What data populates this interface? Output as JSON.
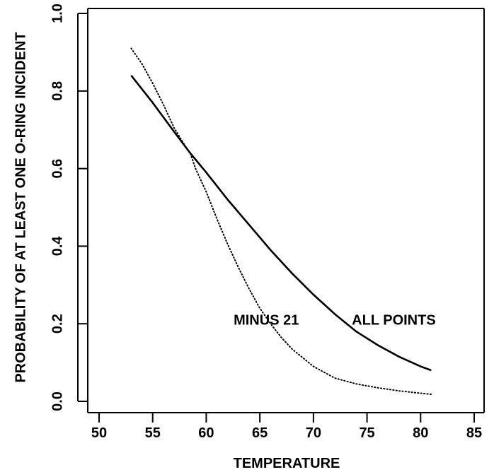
{
  "chart_data": {
    "type": "line",
    "title": "",
    "xlabel": "TEMPERATURE",
    "ylabel": "PROBABILITY OF AT LEAST ONE O-RING INCIDENT",
    "xlim": [
      50,
      85
    ],
    "ylim": [
      0.0,
      1.0
    ],
    "xticks": [
      "50",
      "55",
      "60",
      "65",
      "70",
      "75",
      "80",
      "85"
    ],
    "yticks": [
      "0.0",
      "0.2",
      "0.4",
      "0.6",
      "0.8",
      "1.0"
    ],
    "grid": false,
    "annotations": [
      "MINUS 21",
      "ALL POINTS"
    ],
    "series": [
      {
        "name": "ALL POINTS",
        "style": "solid",
        "x": [
          53,
          55,
          57,
          58.5,
          60,
          62,
          64,
          66,
          68,
          70,
          72,
          74,
          76,
          78,
          80,
          81
        ],
        "y": [
          0.84,
          0.77,
          0.695,
          0.64,
          0.59,
          0.52,
          0.455,
          0.39,
          0.33,
          0.275,
          0.225,
          0.18,
          0.145,
          0.115,
          0.09,
          0.08
        ]
      },
      {
        "name": "MINUS 21",
        "style": "dotted",
        "x": [
          53,
          54,
          55,
          56,
          57,
          58,
          58.5,
          59,
          60,
          61,
          62,
          63,
          64,
          65,
          66,
          67,
          68,
          70,
          72,
          74,
          76,
          78,
          80,
          81
        ],
        "y": [
          0.91,
          0.87,
          0.82,
          0.765,
          0.705,
          0.66,
          0.64,
          0.6,
          0.54,
          0.47,
          0.405,
          0.345,
          0.29,
          0.24,
          0.2,
          0.165,
          0.135,
          0.09,
          0.06,
          0.045,
          0.035,
          0.027,
          0.021,
          0.018
        ]
      }
    ]
  }
}
